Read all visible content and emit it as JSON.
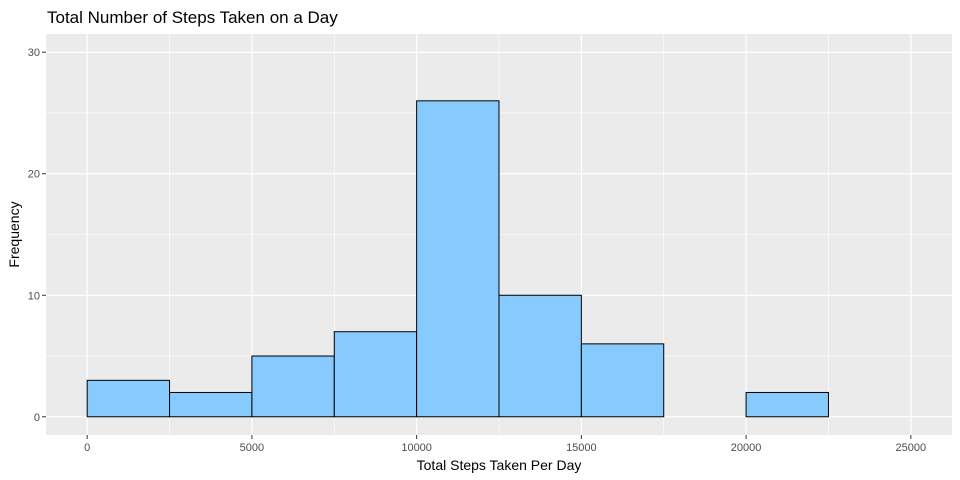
{
  "chart_data": {
    "type": "bar",
    "title": "Total Number of Steps Taken on a Day",
    "xlabel": "Total Steps Taken Per Day",
    "ylabel": "Frequency",
    "bins": [
      {
        "start": 0,
        "end": 2500,
        "count": 3
      },
      {
        "start": 2500,
        "end": 5000,
        "count": 2
      },
      {
        "start": 5000,
        "end": 7500,
        "count": 5
      },
      {
        "start": 7500,
        "end": 10000,
        "count": 7
      },
      {
        "start": 10000,
        "end": 12500,
        "count": 26
      },
      {
        "start": 12500,
        "end": 15000,
        "count": 10
      },
      {
        "start": 15000,
        "end": 17500,
        "count": 6
      },
      {
        "start": 17500,
        "end": 20000,
        "count": 0
      },
      {
        "start": 20000,
        "end": 22500,
        "count": 2
      },
      {
        "start": 22500,
        "end": 25000,
        "count": 0
      }
    ],
    "xlim": [
      -1250,
      26250
    ],
    "ylim": [
      -1.5,
      31.5
    ],
    "x_ticks": [
      0,
      5000,
      10000,
      15000,
      20000,
      25000
    ],
    "x_tick_labels": [
      "0",
      "5000",
      "10000",
      "15000",
      "20000",
      "25000"
    ],
    "y_ticks": [
      0,
      10,
      20,
      30
    ],
    "y_tick_labels": [
      "0",
      "10",
      "20",
      "30"
    ],
    "grid": true,
    "colors": {
      "panel_background": "#EBEBEB",
      "grid": "#FFFFFF",
      "bar_fill": "#87CAFD",
      "bar_outline": "#000000",
      "tick_text": "#4D4D4D",
      "tick_mark": "#333333"
    }
  }
}
